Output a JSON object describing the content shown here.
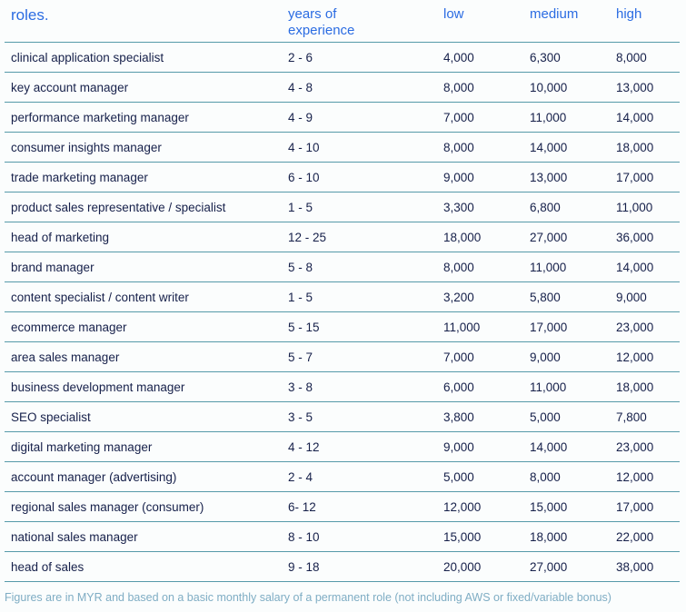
{
  "colors": {
    "background": "#fbfdfd",
    "header_text": "#2b6ce2",
    "body_text": "#16204a",
    "divider": "#569aa9",
    "footnote_text": "#7fadc4"
  },
  "chart_data": {
    "type": "table",
    "title": "roles.",
    "columns": [
      "roles.",
      "years of experience",
      "low",
      "medium",
      "high"
    ],
    "rows": [
      [
        "clinical application specialist",
        "2 - 6",
        "4,000",
        "6,300",
        "8,000"
      ],
      [
        "key account manager",
        "4 - 8",
        "8,000",
        "10,000",
        "13,000"
      ],
      [
        "performance marketing manager",
        "4 - 9",
        "7,000",
        "11,000",
        "14,000"
      ],
      [
        "consumer insights manager",
        "4 - 10",
        "8,000",
        "14,000",
        "18,000"
      ],
      [
        "trade marketing manager",
        "6 - 10",
        "9,000",
        "13,000",
        "17,000"
      ],
      [
        "product sales representative / specialist",
        "1 - 5",
        "3,300",
        "6,800",
        "11,000"
      ],
      [
        "head of marketing",
        "12 - 25",
        "18,000",
        "27,000",
        "36,000"
      ],
      [
        "brand manager",
        "5 - 8",
        "8,000",
        "11,000",
        "14,000"
      ],
      [
        "content specialist / content writer",
        "1 - 5",
        "3,200",
        "5,800",
        "9,000"
      ],
      [
        "ecommerce manager",
        "5 - 15",
        "11,000",
        "17,000",
        "23,000"
      ],
      [
        "area sales manager",
        "5 - 7",
        "7,000",
        "9,000",
        "12,000"
      ],
      [
        "business development manager",
        "3 - 8",
        "6,000",
        "11,000",
        "18,000"
      ],
      [
        "SEO specialist",
        "3 - 5",
        "3,800",
        "5,000",
        "7,800"
      ],
      [
        "digital marketing manager",
        "4 - 12",
        "9,000",
        "14,000",
        "23,000"
      ],
      [
        "account manager (advertising)",
        "2 - 4",
        "5,000",
        "8,000",
        "12,000"
      ],
      [
        "regional sales manager (consumer)",
        "6- 12",
        "12,000",
        "15,000",
        "17,000"
      ],
      [
        "national sales manager",
        "8 - 10",
        "15,000",
        "18,000",
        "22,000"
      ],
      [
        "head of sales",
        "9 - 18",
        "20,000",
        "27,000",
        "38,000"
      ]
    ],
    "footnote": "Figures are in MYR and based on a basic monthly salary of a permanent role (not including AWS or fixed/variable bonus)"
  }
}
